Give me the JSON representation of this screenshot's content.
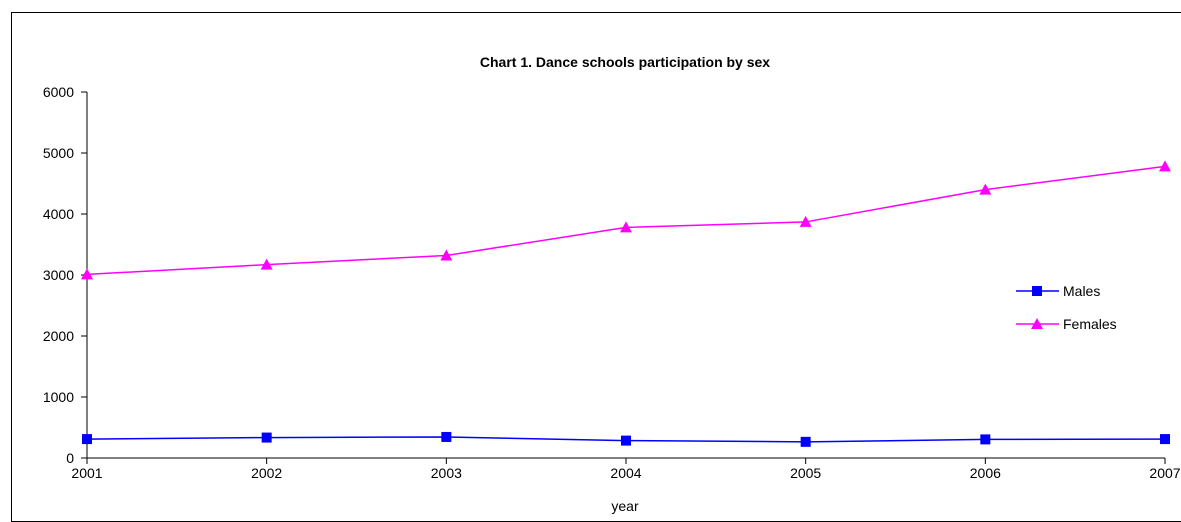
{
  "chart_data": {
    "type": "line",
    "title": "Chart 1. Dance schools participation by sex",
    "xlabel": "year",
    "ylabel": "",
    "x": [
      "2001",
      "2002",
      "2003",
      "2004",
      "2005",
      "2006",
      "2007"
    ],
    "ylim": [
      0,
      6000
    ],
    "yticks": [
      "0",
      "1000",
      "2000",
      "3000",
      "4000",
      "5000",
      "6000"
    ],
    "grid": false,
    "legend_position": "right",
    "series": [
      {
        "name": "Males",
        "values": [
          310,
          335,
          345,
          285,
          265,
          305,
          310
        ],
        "color": "#0000FF",
        "marker": "square"
      },
      {
        "name": "Females",
        "values": [
          3010,
          3170,
          3320,
          3780,
          3870,
          4400,
          4780
        ],
        "color": "#FF00FF",
        "marker": "triangle"
      }
    ]
  }
}
